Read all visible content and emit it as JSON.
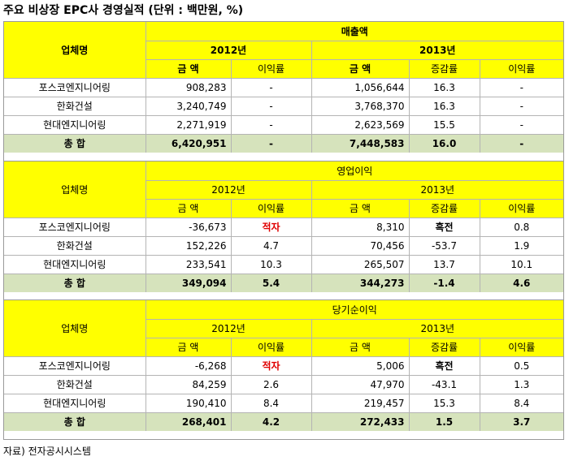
{
  "title": "주요 비상장 EPC사 경영실적 (단위 : 백만원, %)",
  "columns": {
    "company": "업체명",
    "year1": "2012년",
    "year2": "2013년",
    "amount": "금  액",
    "margin": "이익률",
    "growth": "증감률"
  },
  "sections": [
    {
      "name": "매출액",
      "rows": [
        {
          "company": "포스코엔지니어링",
          "y12_amount": "908,283",
          "y12_margin": "-",
          "y13_amount": "1,056,644",
          "y13_growth": "16.3",
          "y13_margin": "-"
        },
        {
          "company": "한화건설",
          "y12_amount": "3,240,749",
          "y12_margin": "-",
          "y13_amount": "3,768,370",
          "y13_growth": "16.3",
          "y13_margin": "-"
        },
        {
          "company": "현대엔지니어링",
          "y12_amount": "2,271,919",
          "y12_margin": "-",
          "y13_amount": "2,623,569",
          "y13_growth": "15.5",
          "y13_margin": "-"
        }
      ],
      "total": {
        "label": "총  합",
        "y12_amount": "6,420,951",
        "y12_margin": "-",
        "y13_amount": "7,448,583",
        "y13_growth": "16.0",
        "y13_margin": "-"
      }
    },
    {
      "name": "영업이익",
      "rows": [
        {
          "company": "포스코엔지니어링",
          "y12_amount": "-36,673",
          "y12_margin": "적자",
          "y13_amount": "8,310",
          "y13_growth": "흑전",
          "y13_margin": "0.8"
        },
        {
          "company": "한화건설",
          "y12_amount": "152,226",
          "y12_margin": "4.7",
          "y13_amount": "70,456",
          "y13_growth": "-53.7",
          "y13_margin": "1.9"
        },
        {
          "company": "현대엔지니어링",
          "y12_amount": "233,541",
          "y12_margin": "10.3",
          "y13_amount": "265,507",
          "y13_growth": "13.7",
          "y13_margin": "10.1"
        }
      ],
      "total": {
        "label": "총  합",
        "y12_amount": "349,094",
        "y12_margin": "5.4",
        "y13_amount": "344,273",
        "y13_growth": "-1.4",
        "y13_margin": "4.6"
      }
    },
    {
      "name": "당기순이익",
      "rows": [
        {
          "company": "포스코엔지니어링",
          "y12_amount": "-6,268",
          "y12_margin": "적자",
          "y13_amount": "5,006",
          "y13_growth": "흑전",
          "y13_margin": "0.5"
        },
        {
          "company": "한화건설",
          "y12_amount": "84,259",
          "y12_margin": "2.6",
          "y13_amount": "47,970",
          "y13_growth": "-43.1",
          "y13_margin": "1.3"
        },
        {
          "company": "현대엔지니어링",
          "y12_amount": "190,410",
          "y12_margin": "8.4",
          "y13_amount": "219,457",
          "y13_growth": "15.3",
          "y13_margin": "8.4"
        }
      ],
      "total": {
        "label": "총  합",
        "y12_amount": "268,401",
        "y12_margin": "4.2",
        "y13_amount": "272,433",
        "y13_growth": "1.5",
        "y13_margin": "3.7"
      }
    }
  ],
  "source": "자료) 전자공시시스템",
  "colors": {
    "header_yellow": "#ffff00",
    "total_green": "#d6e3bc",
    "negative_red": "#e00000"
  }
}
